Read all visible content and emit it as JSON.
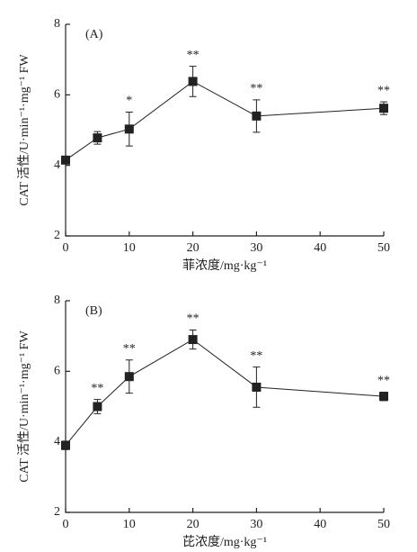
{
  "chart_data": [
    {
      "type": "line",
      "panel": "(A)",
      "x_label": "菲浓度/mg·kg⁻¹",
      "y_label": "CAT 活性/U·min⁻¹·mg⁻¹ FW",
      "x": [
        0,
        5,
        10,
        20,
        30,
        50
      ],
      "series": [
        {
          "color": "#222222",
          "values": [
            4.15,
            4.78,
            5.03,
            6.38,
            5.4,
            5.62
          ],
          "errors": [
            0.05,
            0.18,
            0.48,
            0.43,
            0.46,
            0.18
          ],
          "significance": [
            null,
            null,
            "*",
            "**",
            "**",
            "**"
          ]
        }
      ],
      "xlim": [
        0,
        50
      ],
      "xticks": [
        0,
        10,
        20,
        30,
        40,
        50
      ],
      "ylim": [
        2,
        8
      ],
      "yticks": [
        2,
        4,
        6,
        8
      ]
    },
    {
      "type": "line",
      "panel": "(B)",
      "x_label": "芘浓度/mg·kg⁻¹",
      "y_label": "CAT 活性/U·min⁻¹·mg⁻¹ FW",
      "x": [
        0,
        5,
        10,
        20,
        30,
        50
      ],
      "series": [
        {
          "color": "#222222",
          "values": [
            3.9,
            5.0,
            5.85,
            6.9,
            5.55,
            5.29
          ],
          "errors": [
            0.12,
            0.2,
            0.47,
            0.27,
            0.57,
            0.12
          ],
          "significance": [
            null,
            "**",
            "**",
            "**",
            "**",
            "**"
          ]
        }
      ],
      "xlim": [
        0,
        50
      ],
      "xticks": [
        0,
        10,
        20,
        30,
        40,
        50
      ],
      "ylim": [
        2,
        8
      ],
      "yticks": [
        2,
        4,
        6,
        8
      ]
    }
  ]
}
